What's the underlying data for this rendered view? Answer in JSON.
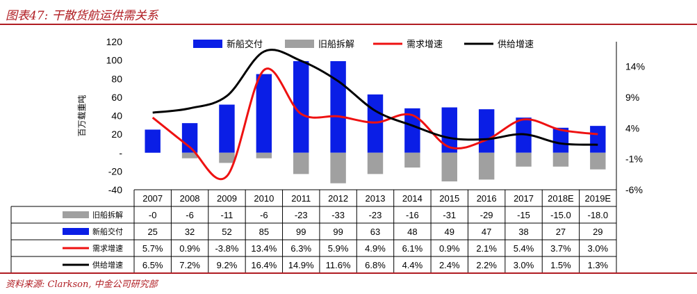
{
  "title": "图表47: 干散货航运供需关系",
  "source": "资料来源: Clarkson, 中金公司研究部",
  "chart_data": {
    "type": "bar",
    "categories": [
      "2007",
      "2008",
      "2009",
      "2010",
      "2011",
      "2012",
      "2013",
      "2014",
      "2015",
      "2016",
      "2017",
      "2018E",
      "2019E"
    ],
    "ylabel": "百万载重吨",
    "ylim": [
      -40,
      120
    ],
    "y_ticks": [
      "120",
      "100",
      "80",
      "60",
      "40",
      "20",
      "-",
      "-20",
      "-40"
    ],
    "y2lim": [
      -6,
      18
    ],
    "y2_ticks": [
      "14%",
      "9%",
      "4%",
      "-1%",
      "-6%"
    ],
    "legend_position": "top",
    "series": [
      {
        "name": "新船交付",
        "kind": "bar",
        "axis": "left",
        "color": "#0a1ee6",
        "values": [
          25,
          32,
          52,
          85,
          99,
          99,
          63,
          48,
          49,
          47,
          38,
          27,
          29
        ],
        "labels": [
          "25",
          "32",
          "52",
          "85",
          "99",
          "99",
          "63",
          "48",
          "49",
          "47",
          "38",
          "27",
          "29"
        ]
      },
      {
        "name": "旧船拆解",
        "kind": "bar",
        "axis": "left",
        "color": "#a0a0a0",
        "values": [
          0,
          -6,
          -11,
          -6,
          -23,
          -33,
          -23,
          -16,
          -31,
          -29,
          -15,
          -15.0,
          -18.0
        ],
        "labels": [
          "-0",
          "-6",
          "-11",
          "-6",
          "-23",
          "-33",
          "-23",
          "-16",
          "-31",
          "-29",
          "-15",
          "-15.0",
          "-18.0"
        ]
      },
      {
        "name": "需求增速",
        "kind": "line",
        "axis": "right",
        "color": "#ee1111",
        "values": [
          5.7,
          0.9,
          -3.8,
          13.4,
          6.3,
          5.9,
          4.9,
          6.1,
          0.9,
          2.1,
          5.4,
          3.7,
          3.0
        ],
        "labels": [
          "5.7%",
          "0.9%",
          "-3.8%",
          "13.4%",
          "6.3%",
          "5.9%",
          "4.9%",
          "6.1%",
          "0.9%",
          "2.1%",
          "5.4%",
          "3.7%",
          "3.0%"
        ]
      },
      {
        "name": "供给增速",
        "kind": "line",
        "axis": "right",
        "color": "#000000",
        "values": [
          6.5,
          7.2,
          9.2,
          16.4,
          14.9,
          11.6,
          6.8,
          4.4,
          2.4,
          2.2,
          3.0,
          1.5,
          1.3
        ],
        "labels": [
          "6.5%",
          "7.2%",
          "9.2%",
          "16.4%",
          "14.9%",
          "11.6%",
          "6.8%",
          "4.4%",
          "2.4%",
          "2.2%",
          "3.0%",
          "1.5%",
          "1.3%"
        ]
      }
    ],
    "table_order": [
      1,
      0,
      2,
      3
    ]
  }
}
